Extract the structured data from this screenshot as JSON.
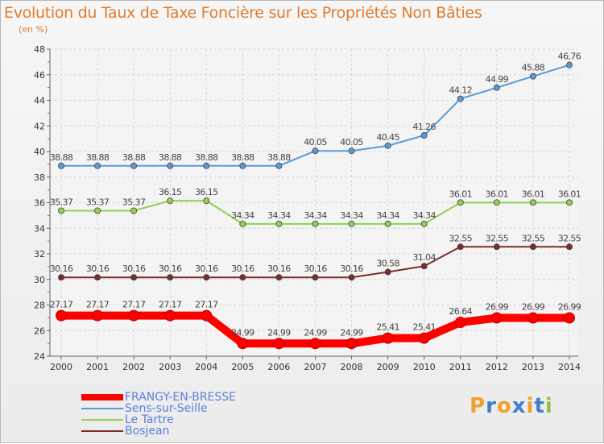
{
  "title": "Evolution du Taux de Taxe Foncière sur les Propriétés Non Bâties",
  "subtitle": "(en %)",
  "logo": {
    "text": "Proxiti",
    "letters": [
      {
        "ch": "P",
        "color": "#f0a02c"
      },
      {
        "ch": "r",
        "color": "#3f7fd0"
      },
      {
        "ch": "o",
        "color": "#f0a02c"
      },
      {
        "ch": "x",
        "color": "#3f7fd0"
      },
      {
        "ch": "i",
        "color": "#f0a02c"
      },
      {
        "ch": "t",
        "color": "#3f7fd0"
      },
      {
        "ch": "i",
        "color": "#8bc53f"
      }
    ]
  },
  "chart_data": {
    "type": "line",
    "title": "Evolution du Taux de Taxe Foncière sur les Propriétés Non Bâties",
    "subtitle": "(en %)",
    "xlabel": "",
    "ylabel": "",
    "ylim": [
      24,
      48
    ],
    "yticks": [
      24,
      26,
      28,
      30,
      32,
      34,
      36,
      38,
      40,
      42,
      44,
      46,
      48
    ],
    "grid": true,
    "legend_position": "bottom-left",
    "x": [
      "2000",
      "2001",
      "2002",
      "2003",
      "2004",
      "2005",
      "2006",
      "2007",
      "2008",
      "2009",
      "2010",
      "2011",
      "2012",
      "2013",
      "2014"
    ],
    "series": [
      {
        "name": "FRANGY-EN-BRESSE",
        "color": "#ff0000",
        "highlight": true,
        "values": [
          27.17,
          27.17,
          27.17,
          27.17,
          27.17,
          24.99,
          24.99,
          24.99,
          24.99,
          25.41,
          25.41,
          26.64,
          26.99,
          26.99,
          26.99
        ],
        "labels": [
          "27.17",
          "27.17",
          "27.17",
          "27.17",
          "27.17",
          "24.99",
          "24.99",
          "24.99",
          "24.99",
          "25.41",
          "25.41",
          "26.64",
          "26.99",
          "26.99",
          "26.99"
        ]
      },
      {
        "name": "Sens-sur-Seille",
        "color": "#5b9bd5",
        "values": [
          38.88,
          38.88,
          38.88,
          38.88,
          38.88,
          38.88,
          38.88,
          40.05,
          40.05,
          40.45,
          41.26,
          44.12,
          44.99,
          45.88,
          46.76
        ],
        "labels": [
          "38.88",
          "38.88",
          "38.88",
          "38.88",
          "38.88",
          "38.88",
          "38.88",
          "40.05",
          "40.05",
          "40.45",
          "41.26",
          "44.12",
          "44.99",
          "45.88",
          "46.76"
        ]
      },
      {
        "name": "Le Tartre",
        "color": "#92d050",
        "values": [
          35.37,
          35.37,
          35.37,
          36.15,
          36.15,
          34.34,
          34.34,
          34.34,
          34.34,
          34.34,
          34.34,
          36.01,
          36.01,
          36.01,
          36.01
        ],
        "labels": [
          "35.37",
          "35.37",
          "35.37",
          "36.15",
          "36.15",
          "34.34",
          "34.34",
          "34.34",
          "34.34",
          "34.34",
          "34.34",
          "36.01",
          "36.01",
          "36.01",
          "36.01"
        ]
      },
      {
        "name": "Bosjean",
        "color": "#7b2c2c",
        "values": [
          30.16,
          30.16,
          30.16,
          30.16,
          30.16,
          30.16,
          30.16,
          30.16,
          30.16,
          30.58,
          31.04,
          32.55,
          32.55,
          32.55,
          32.55
        ],
        "labels": [
          "30.16",
          "30.16",
          "30.16",
          "30.16",
          "30.16",
          "30.16",
          "30.16",
          "30.16",
          "30.16",
          "30.58",
          "31.04",
          "32.55",
          "32.55",
          "32.55",
          "32.55"
        ]
      }
    ]
  }
}
